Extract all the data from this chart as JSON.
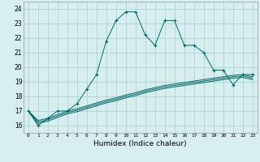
{
  "xlabel": "Humidex (Indice chaleur)",
  "bg_color": "#d7eeee",
  "grid_color": "#aed4d4",
  "line_color": "#006868",
  "xlim": [
    -0.5,
    23.5
  ],
  "ylim": [
    15.5,
    24.5
  ],
  "xticks": [
    0,
    1,
    2,
    3,
    4,
    5,
    6,
    7,
    8,
    9,
    10,
    11,
    12,
    13,
    14,
    15,
    16,
    17,
    18,
    19,
    20,
    21,
    22,
    23
  ],
  "yticks": [
    16,
    17,
    18,
    19,
    20,
    21,
    22,
    23,
    24
  ],
  "main_y": [
    17.0,
    16.0,
    16.5,
    17.0,
    17.0,
    17.5,
    18.5,
    19.5,
    21.8,
    23.2,
    23.8,
    23.8,
    22.2,
    21.5,
    23.2,
    23.2,
    21.5,
    21.5,
    21.0,
    19.8,
    19.8,
    18.8,
    19.5,
    19.5
  ],
  "line1_y": [
    17.0,
    16.35,
    16.5,
    16.75,
    17.0,
    17.15,
    17.35,
    17.55,
    17.75,
    17.9,
    18.1,
    18.25,
    18.45,
    18.6,
    18.75,
    18.85,
    18.95,
    19.05,
    19.15,
    19.25,
    19.35,
    19.45,
    19.5,
    19.35
  ],
  "line2_y": [
    17.0,
    16.25,
    16.4,
    16.65,
    16.9,
    17.05,
    17.25,
    17.45,
    17.65,
    17.8,
    18.0,
    18.15,
    18.35,
    18.5,
    18.65,
    18.75,
    18.85,
    18.95,
    19.05,
    19.15,
    19.25,
    19.35,
    19.4,
    19.25
  ],
  "line3_y": [
    17.0,
    16.15,
    16.3,
    16.55,
    16.8,
    16.95,
    17.15,
    17.35,
    17.55,
    17.7,
    17.9,
    18.05,
    18.25,
    18.4,
    18.55,
    18.65,
    18.75,
    18.85,
    18.95,
    19.05,
    19.15,
    19.25,
    19.3,
    19.15
  ]
}
